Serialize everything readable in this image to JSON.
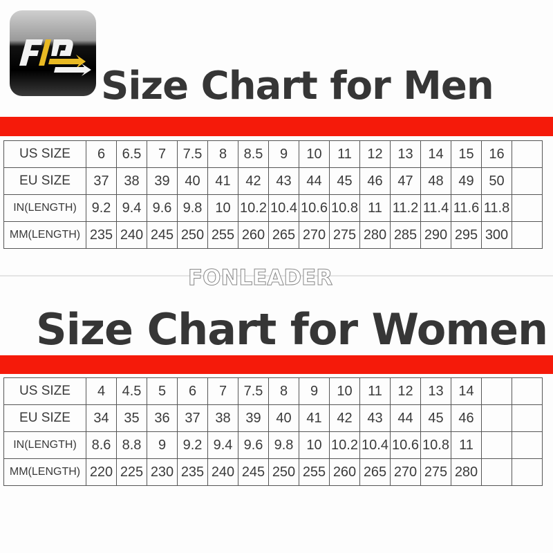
{
  "logo": {
    "text": "FID",
    "colors": {
      "accent": "#e8b923",
      "white": "#ffffff"
    }
  },
  "watermark": "FONLEADER",
  "colors": {
    "red_bar": "#f51a0a",
    "title": "#363636"
  },
  "men": {
    "title": "Size Chart for Men",
    "rows": [
      {
        "label": "US SIZE",
        "values": [
          "6",
          "6.5",
          "7",
          "7.5",
          "8",
          "8.5",
          "9",
          "10",
          "11",
          "12",
          "13",
          "14",
          "15",
          "16"
        ]
      },
      {
        "label": "EU SIZE",
        "values": [
          "37",
          "38",
          "39",
          "40",
          "41",
          "42",
          "43",
          "44",
          "45",
          "46",
          "47",
          "48",
          "49",
          "50"
        ]
      },
      {
        "label": "IN(LENGTH)",
        "values": [
          "9.2",
          "9.4",
          "9.6",
          "9.8",
          "10",
          "10.2",
          "10.4",
          "10.6",
          "10.8",
          "11",
          "11.2",
          "11.4",
          "11.6",
          "11.8"
        ]
      },
      {
        "label": "MM(LENGTH)",
        "values": [
          "235",
          "240",
          "245",
          "250",
          "255",
          "260",
          "265",
          "270",
          "275",
          "280",
          "285",
          "290",
          "295",
          "300"
        ]
      }
    ]
  },
  "women": {
    "title": "Size Chart for Women",
    "rows": [
      {
        "label": "US SIZE",
        "values": [
          "4",
          "4.5",
          "5",
          "6",
          "7",
          "7.5",
          "8",
          "9",
          "10",
          "11",
          "12",
          "13",
          "14"
        ]
      },
      {
        "label": "EU SIZE",
        "values": [
          "34",
          "35",
          "36",
          "37",
          "38",
          "39",
          "40",
          "41",
          "42",
          "43",
          "44",
          "45",
          "46"
        ]
      },
      {
        "label": "IN(LENGTH)",
        "values": [
          "8.6",
          "8.8",
          "9",
          "9.2",
          "9.4",
          "9.6",
          "9.8",
          "10",
          "10.2",
          "10.4",
          "10.6",
          "10.8",
          "11"
        ]
      },
      {
        "label": "MM(LENGTH)",
        "values": [
          "220",
          "225",
          "230",
          "235",
          "240",
          "245",
          "250",
          "255",
          "260",
          "265",
          "270",
          "275",
          "280"
        ]
      }
    ]
  }
}
